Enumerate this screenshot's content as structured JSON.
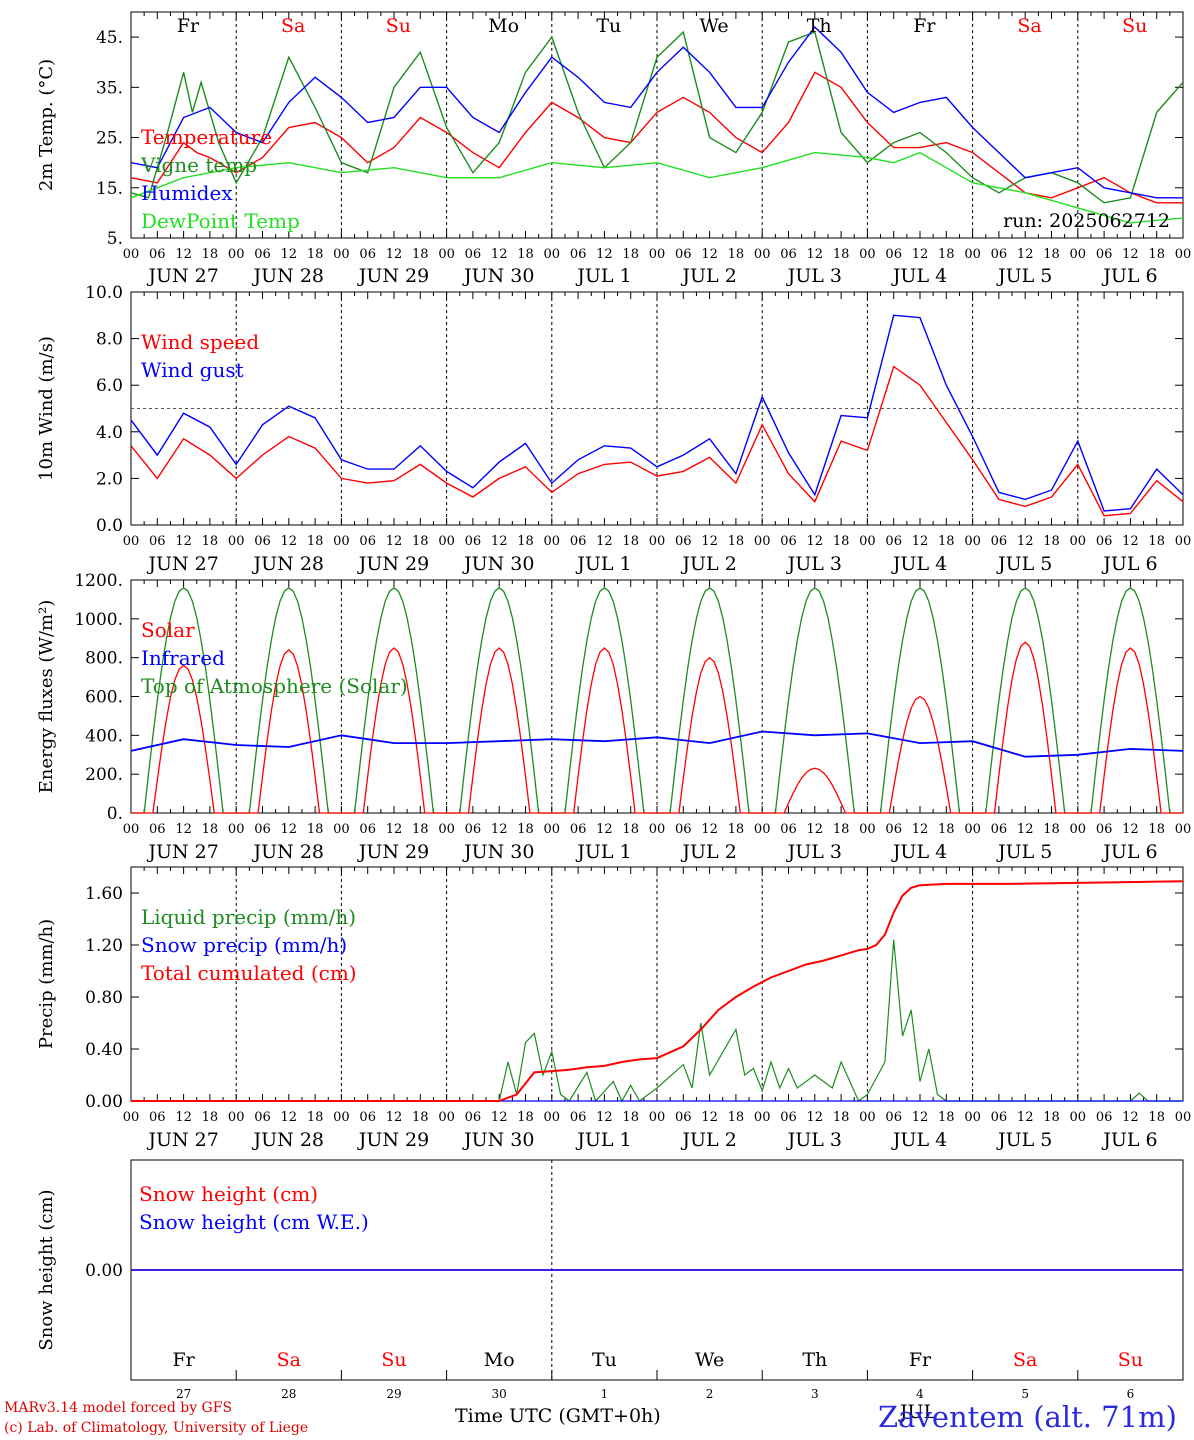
{
  "colors": {
    "red": "#ff0000",
    "green": "#1e8c1e",
    "blue": "#0000ff",
    "lime": "#22e022",
    "black": "#000000"
  },
  "day_names": [
    "Fr",
    "Sa",
    "Su",
    "Mo",
    "Tu",
    "We",
    "Th",
    "Fr",
    "Sa",
    "Su"
  ],
  "weekend_flags": [
    false,
    true,
    true,
    false,
    false,
    false,
    false,
    false,
    true,
    true
  ],
  "date_labels": [
    "JUN 27",
    "JUN 28",
    "JUN 29",
    "JUN 30",
    "JUL  1",
    "JUL  2",
    "JUL  3",
    "JUL  4",
    "JUL  5",
    "JUL  6"
  ],
  "hour_tick_labels": [
    "00",
    "06",
    "12",
    "18"
  ],
  "run_label": "run: 2025062712",
  "footer": {
    "credit_line1": "MARv3.14 model forced by GFS",
    "credit_line2": "(c) Lab. of Climatology, University of Liege",
    "xlabel": "Time UTC (GMT+0h)",
    "station": "Zaventem (alt. 71m)",
    "month_label": "JUL",
    "day_numbers": [
      "27",
      "28",
      "29",
      "30",
      "1",
      "2",
      "3",
      "4",
      "5",
      "6"
    ]
  },
  "chart_data": [
    {
      "type": "line",
      "panel": "temperature",
      "ylabel": "2m Temp. (°C)",
      "ylim": [
        5,
        50
      ],
      "yticks": [
        "5.",
        "15.",
        "25.",
        "35.",
        "45."
      ],
      "x_unit": "hours since JUN 27 00 UTC",
      "series": [
        {
          "name": "Temperature",
          "color": "red",
          "x": [
            0,
            6,
            12,
            15,
            18,
            24,
            30,
            36,
            42,
            48,
            54,
            60,
            66,
            72,
            78,
            84,
            90,
            96,
            102,
            108,
            114,
            120,
            126,
            132,
            138,
            144,
            150,
            156,
            162,
            168,
            174,
            180,
            186,
            192,
            198,
            204,
            210,
            216,
            222,
            228,
            234,
            240
          ],
          "y": [
            17,
            16,
            24,
            22,
            21,
            18,
            21,
            27,
            28,
            25,
            20,
            23,
            29,
            26,
            22,
            19,
            26,
            32,
            29,
            25,
            24,
            30,
            33,
            30,
            25,
            22,
            28,
            38,
            35,
            28,
            23,
            23,
            24,
            22,
            18,
            14,
            13,
            15,
            17,
            14,
            12,
            12
          ]
        },
        {
          "name": "Vigne temp",
          "color": "green",
          "x": [
            0,
            4,
            8,
            12,
            14,
            16,
            20,
            24,
            30,
            36,
            42,
            48,
            54,
            60,
            66,
            72,
            78,
            84,
            90,
            96,
            102,
            108,
            114,
            120,
            126,
            132,
            138,
            144,
            150,
            156,
            162,
            168,
            174,
            180,
            186,
            192,
            198,
            204,
            210,
            216,
            222,
            228,
            234,
            240
          ],
          "y": [
            14,
            13,
            25,
            38,
            30,
            36,
            24,
            16,
            25,
            41,
            31,
            20,
            18,
            35,
            42,
            27,
            18,
            24,
            38,
            45,
            30,
            19,
            24,
            41,
            46,
            25,
            22,
            30,
            44,
            46,
            26,
            20,
            24,
            26,
            22,
            17,
            14,
            17,
            18,
            16,
            12,
            13,
            30,
            36
          ]
        },
        {
          "name": "Humidex",
          "color": "blue",
          "x": [
            0,
            6,
            12,
            18,
            24,
            30,
            36,
            42,
            48,
            54,
            60,
            66,
            72,
            78,
            84,
            90,
            96,
            102,
            108,
            114,
            120,
            126,
            132,
            138,
            144,
            150,
            156,
            162,
            168,
            174,
            180,
            186,
            192,
            198,
            204,
            210,
            216,
            222,
            228,
            234,
            240
          ],
          "y": [
            20,
            19,
            29,
            31,
            26,
            24,
            32,
            37,
            33,
            28,
            29,
            35,
            35,
            29,
            26,
            34,
            41,
            37,
            32,
            31,
            38,
            43,
            38,
            31,
            31,
            40,
            47,
            42,
            34,
            30,
            32,
            33,
            27,
            22,
            17,
            18,
            19,
            15,
            14,
            13,
            13
          ]
        },
        {
          "name": "DewPoint Temp",
          "color": "lime",
          "x": [
            0,
            12,
            24,
            36,
            48,
            60,
            72,
            84,
            96,
            108,
            120,
            132,
            144,
            156,
            168,
            174,
            180,
            186,
            192,
            204,
            216,
            228,
            240
          ],
          "y": [
            13,
            17,
            19,
            20,
            18,
            19,
            17,
            17,
            20,
            19,
            20,
            17,
            19,
            22,
            21,
            20,
            22,
            19,
            16,
            14,
            11,
            8,
            9
          ]
        }
      ]
    },
    {
      "type": "line",
      "panel": "wind",
      "ylabel": "10m Wind (m/s)",
      "ylim": [
        0,
        10
      ],
      "yticks": [
        "0.0",
        "2.0",
        "4.0",
        "6.0",
        "8.0",
        "10.0"
      ],
      "reference_line": 5,
      "series": [
        {
          "name": "Wind speed",
          "color": "red",
          "x": [
            0,
            6,
            12,
            18,
            24,
            30,
            36,
            42,
            48,
            54,
            60,
            66,
            72,
            78,
            84,
            90,
            96,
            102,
            108,
            114,
            120,
            126,
            132,
            138,
            144,
            150,
            156,
            162,
            168,
            174,
            180,
            186,
            192,
            198,
            204,
            210,
            216,
            222,
            228,
            234,
            240
          ],
          "y": [
            3.4,
            2.0,
            3.7,
            3.0,
            2.0,
            3.0,
            3.8,
            3.3,
            2.0,
            1.8,
            1.9,
            2.6,
            1.8,
            1.2,
            2.0,
            2.5,
            1.4,
            2.2,
            2.6,
            2.7,
            2.1,
            2.3,
            2.9,
            1.8,
            4.3,
            2.2,
            1.0,
            3.6,
            3.2,
            6.8,
            6.0,
            4.4,
            2.8,
            1.1,
            0.8,
            1.2,
            2.6,
            0.4,
            0.5,
            1.9,
            1.0
          ]
        },
        {
          "name": "Wind gust",
          "color": "blue",
          "x": [
            0,
            6,
            12,
            18,
            24,
            30,
            36,
            42,
            48,
            54,
            60,
            66,
            72,
            78,
            84,
            90,
            96,
            102,
            108,
            114,
            120,
            126,
            132,
            138,
            144,
            150,
            156,
            162,
            168,
            174,
            180,
            186,
            192,
            198,
            204,
            210,
            216,
            222,
            228,
            234,
            240
          ],
          "y": [
            4.5,
            3.0,
            4.8,
            4.2,
            2.6,
            4.3,
            5.1,
            4.6,
            2.8,
            2.4,
            2.4,
            3.4,
            2.3,
            1.6,
            2.7,
            3.5,
            1.8,
            2.8,
            3.4,
            3.3,
            2.5,
            3.0,
            3.7,
            2.2,
            5.5,
            3.1,
            1.3,
            4.7,
            4.6,
            9.0,
            8.9,
            6.0,
            3.8,
            1.4,
            1.1,
            1.5,
            3.6,
            0.6,
            0.7,
            2.4,
            1.3
          ]
        }
      ]
    },
    {
      "type": "line",
      "panel": "radiation",
      "ylabel": "Energy fluxes (W/m²)",
      "ylim": [
        0,
        1200
      ],
      "yticks": [
        "0.",
        "200.",
        "400.",
        "600.",
        "800.",
        "1000.",
        "1200."
      ],
      "series": [
        {
          "name": "Solar",
          "color": "red",
          "daily_peak": [
            760,
            840,
            850,
            850,
            850,
            800,
            230,
            600,
            880,
            850
          ]
        },
        {
          "name": "Infrared",
          "color": "blue",
          "x": [
            0,
            12,
            24,
            36,
            48,
            60,
            72,
            84,
            96,
            108,
            120,
            132,
            144,
            156,
            168,
            180,
            192,
            204,
            216,
            228,
            240
          ],
          "y": [
            320,
            380,
            350,
            340,
            400,
            360,
            360,
            370,
            380,
            370,
            390,
            360,
            420,
            400,
            410,
            360,
            370,
            290,
            300,
            330,
            320
          ]
        },
        {
          "name": "Top of Atmosphere (Solar)",
          "color": "green",
          "daily_peak": [
            1160,
            1160,
            1160,
            1160,
            1160,
            1160,
            1160,
            1160,
            1160,
            1160
          ]
        }
      ]
    },
    {
      "type": "line",
      "panel": "precip",
      "ylabel": "Precip (mm/h)",
      "ylim": [
        0,
        1.8
      ],
      "yticks": [
        "0.00",
        "0.40",
        "0.80",
        "1.20",
        "1.60"
      ],
      "series": [
        {
          "name": "Liquid precip (mm/h)",
          "color": "green",
          "x": [
            0,
            84,
            86,
            88,
            90,
            92,
            94,
            96,
            98,
            100,
            104,
            106,
            110,
            112,
            114,
            116,
            120,
            126,
            128,
            130,
            132,
            138,
            140,
            142,
            144,
            146,
            148,
            150,
            152,
            156,
            160,
            162,
            166,
            168,
            172,
            174,
            176,
            178,
            180,
            182,
            184,
            186,
            188,
            190,
            192,
            200,
            228,
            230,
            232,
            240
          ],
          "y": [
            0,
            0,
            0.3,
            0.05,
            0.45,
            0.52,
            0.2,
            0.38,
            0.05,
            0,
            0.22,
            0,
            0.15,
            0,
            0.12,
            0,
            0.1,
            0.28,
            0.1,
            0.6,
            0.2,
            0.55,
            0.2,
            0.25,
            0.08,
            0.3,
            0.1,
            0.25,
            0.1,
            0.2,
            0.1,
            0.3,
            0,
            0.05,
            0.3,
            1.24,
            0.5,
            0.7,
            0.15,
            0.4,
            0.05,
            0,
            0,
            0,
            0,
            0,
            0,
            0.06,
            0,
            0
          ]
        },
        {
          "name": "Snow precip (mm/h)",
          "color": "blue",
          "x": [
            0,
            240
          ],
          "y": [
            0,
            0
          ]
        },
        {
          "name": "Total cumulated (cm)",
          "color": "red",
          "x": [
            0,
            84,
            88,
            92,
            96,
            100,
            104,
            108,
            112,
            116,
            120,
            126,
            130,
            134,
            138,
            142,
            146,
            150,
            154,
            158,
            162,
            166,
            168,
            170,
            172,
            174,
            176,
            178,
            180,
            186,
            200,
            220,
            240
          ],
          "y": [
            0,
            0,
            0.05,
            0.22,
            0.23,
            0.24,
            0.26,
            0.27,
            0.3,
            0.32,
            0.33,
            0.42,
            0.55,
            0.7,
            0.8,
            0.88,
            0.95,
            1.0,
            1.05,
            1.08,
            1.12,
            1.16,
            1.17,
            1.2,
            1.28,
            1.45,
            1.58,
            1.64,
            1.66,
            1.67,
            1.67,
            1.68,
            1.69
          ]
        }
      ]
    },
    {
      "type": "line",
      "panel": "snow",
      "ylabel": "Snow height (cm)",
      "ylim": [
        -0.1,
        0.1
      ],
      "yticks": [
        "0.00"
      ],
      "series": [
        {
          "name": "Snow height (cm)",
          "color": "red",
          "x": [
            0,
            240
          ],
          "y": [
            0,
            0
          ]
        },
        {
          "name": "Snow height (cm W.E.)",
          "color": "blue",
          "x": [
            0,
            240
          ],
          "y": [
            0,
            0
          ]
        }
      ]
    }
  ]
}
